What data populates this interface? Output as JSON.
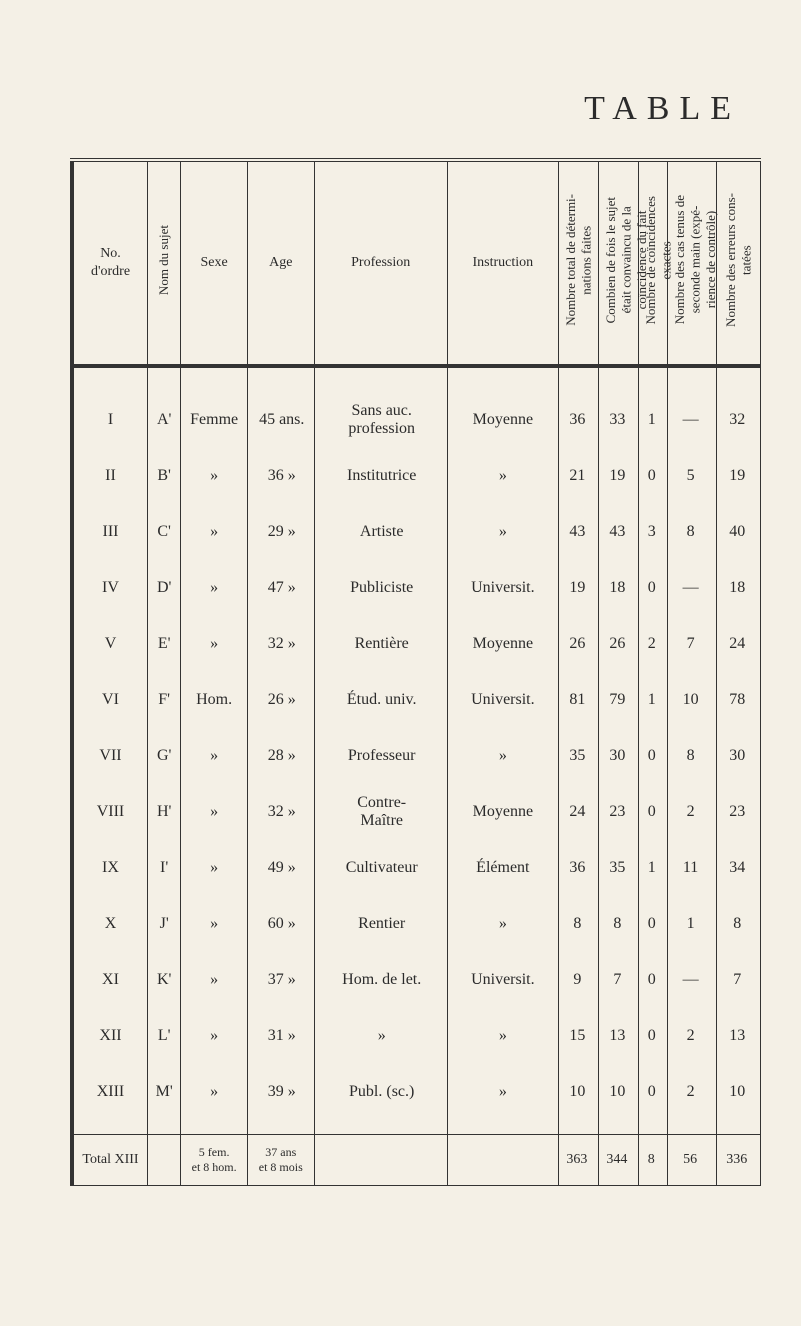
{
  "page_title": "TABLE",
  "columns": [
    {
      "key": "no",
      "label": "No.\nd'ordre",
      "rotated": false
    },
    {
      "key": "nom",
      "label": "Nom du sujet",
      "rotated": true
    },
    {
      "key": "sexe",
      "label": "Sexe",
      "rotated": false
    },
    {
      "key": "age",
      "label": "Age",
      "rotated": false
    },
    {
      "key": "prof",
      "label": "Profession",
      "rotated": false
    },
    {
      "key": "instr",
      "label": "Instruction",
      "rotated": false
    },
    {
      "key": "c7",
      "label": "Nombre total de détermi-\nnations faites",
      "rotated": true
    },
    {
      "key": "c8",
      "label": "Combien de fois le sujet\nétait convaincu de la\ncoïncidence du fait",
      "rotated": true
    },
    {
      "key": "c9",
      "label": "Nombre de coïncidences\nexactes",
      "rotated": true
    },
    {
      "key": "c10",
      "label": "Nombre des cas tenus de\nseconde main (expé-\nrience de contrôle)",
      "rotated": true
    },
    {
      "key": "c11",
      "label": "Nombre des erreurs cons-\ntatées",
      "rotated": true
    }
  ],
  "rows": [
    {
      "no": "I",
      "nom": "A'",
      "sexe": "Femme",
      "age": "45 ans.",
      "prof": "Sans auc. profession",
      "instr": "Moyenne",
      "c7": "36",
      "c8": "33",
      "c9": "1",
      "c10": "—",
      "c11": "32"
    },
    {
      "no": "II",
      "nom": "B'",
      "sexe": "»",
      "age": "36  »",
      "prof": "Institutrice",
      "instr": "»",
      "c7": "21",
      "c8": "19",
      "c9": "0",
      "c10": "5",
      "c11": "19"
    },
    {
      "no": "III",
      "nom": "C'",
      "sexe": "»",
      "age": "29  »",
      "prof": "Artiste",
      "instr": "»",
      "c7": "43",
      "c8": "43",
      "c9": "3",
      "c10": "8",
      "c11": "40"
    },
    {
      "no": "IV",
      "nom": "D'",
      "sexe": "»",
      "age": "47  »",
      "prof": "Publiciste",
      "instr": "Universit.",
      "c7": "19",
      "c8": "18",
      "c9": "0",
      "c10": "—",
      "c11": "18"
    },
    {
      "no": "V",
      "nom": "E'",
      "sexe": "»",
      "age": "32  »",
      "prof": "Rentière",
      "instr": "Moyenne",
      "c7": "26",
      "c8": "26",
      "c9": "2",
      "c10": "7",
      "c11": "24"
    },
    {
      "no": "VI",
      "nom": "F'",
      "sexe": "Hom.",
      "age": "26  »",
      "prof": "Étud. univ.",
      "instr": "Universit.",
      "c7": "81",
      "c8": "79",
      "c9": "1",
      "c10": "10",
      "c11": "78"
    },
    {
      "no": "VII",
      "nom": "G'",
      "sexe": "»",
      "age": "28  »",
      "prof": "Professeur",
      "instr": "»",
      "c7": "35",
      "c8": "30",
      "c9": "0",
      "c10": "8",
      "c11": "30"
    },
    {
      "no": "VIII",
      "nom": "H'",
      "sexe": "»",
      "age": "32  »",
      "prof": "Contre-\nMaître",
      "instr": "Moyenne",
      "c7": "24",
      "c8": "23",
      "c9": "0",
      "c10": "2",
      "c11": "23"
    },
    {
      "no": "IX",
      "nom": "I'",
      "sexe": "»",
      "age": "49  »",
      "prof": "Cultivateur",
      "instr": "Élément",
      "c7": "36",
      "c8": "35",
      "c9": "1",
      "c10": "11",
      "c11": "34"
    },
    {
      "no": "X",
      "nom": "J'",
      "sexe": "»",
      "age": "60  »",
      "prof": "Rentier",
      "instr": "»",
      "c7": "8",
      "c8": "8",
      "c9": "0",
      "c10": "1",
      "c11": "8"
    },
    {
      "no": "XI",
      "nom": "K'",
      "sexe": "»",
      "age": "37  »",
      "prof": "Hom. de let.",
      "instr": "Universit.",
      "c7": "9",
      "c8": "7",
      "c9": "0",
      "c10": "—",
      "c11": "7"
    },
    {
      "no": "XII",
      "nom": "L'",
      "sexe": "»",
      "age": "31  »",
      "prof": "»",
      "instr": "»",
      "c7": "15",
      "c8": "13",
      "c9": "0",
      "c10": "2",
      "c11": "13"
    },
    {
      "no": "XIII",
      "nom": "M'",
      "sexe": "»",
      "age": "39  »",
      "prof": "Publ. (sc.)",
      "instr": "»",
      "c7": "10",
      "c8": "10",
      "c9": "0",
      "c10": "2",
      "c11": "10"
    }
  ],
  "footer": {
    "label": "Total XIII",
    "sexe": "5 fem.\net 8 hom.",
    "age": "37 ans\net 8 mois",
    "c7": "363",
    "c8": "344",
    "c9": "8",
    "c10": "56",
    "c11": "336"
  }
}
